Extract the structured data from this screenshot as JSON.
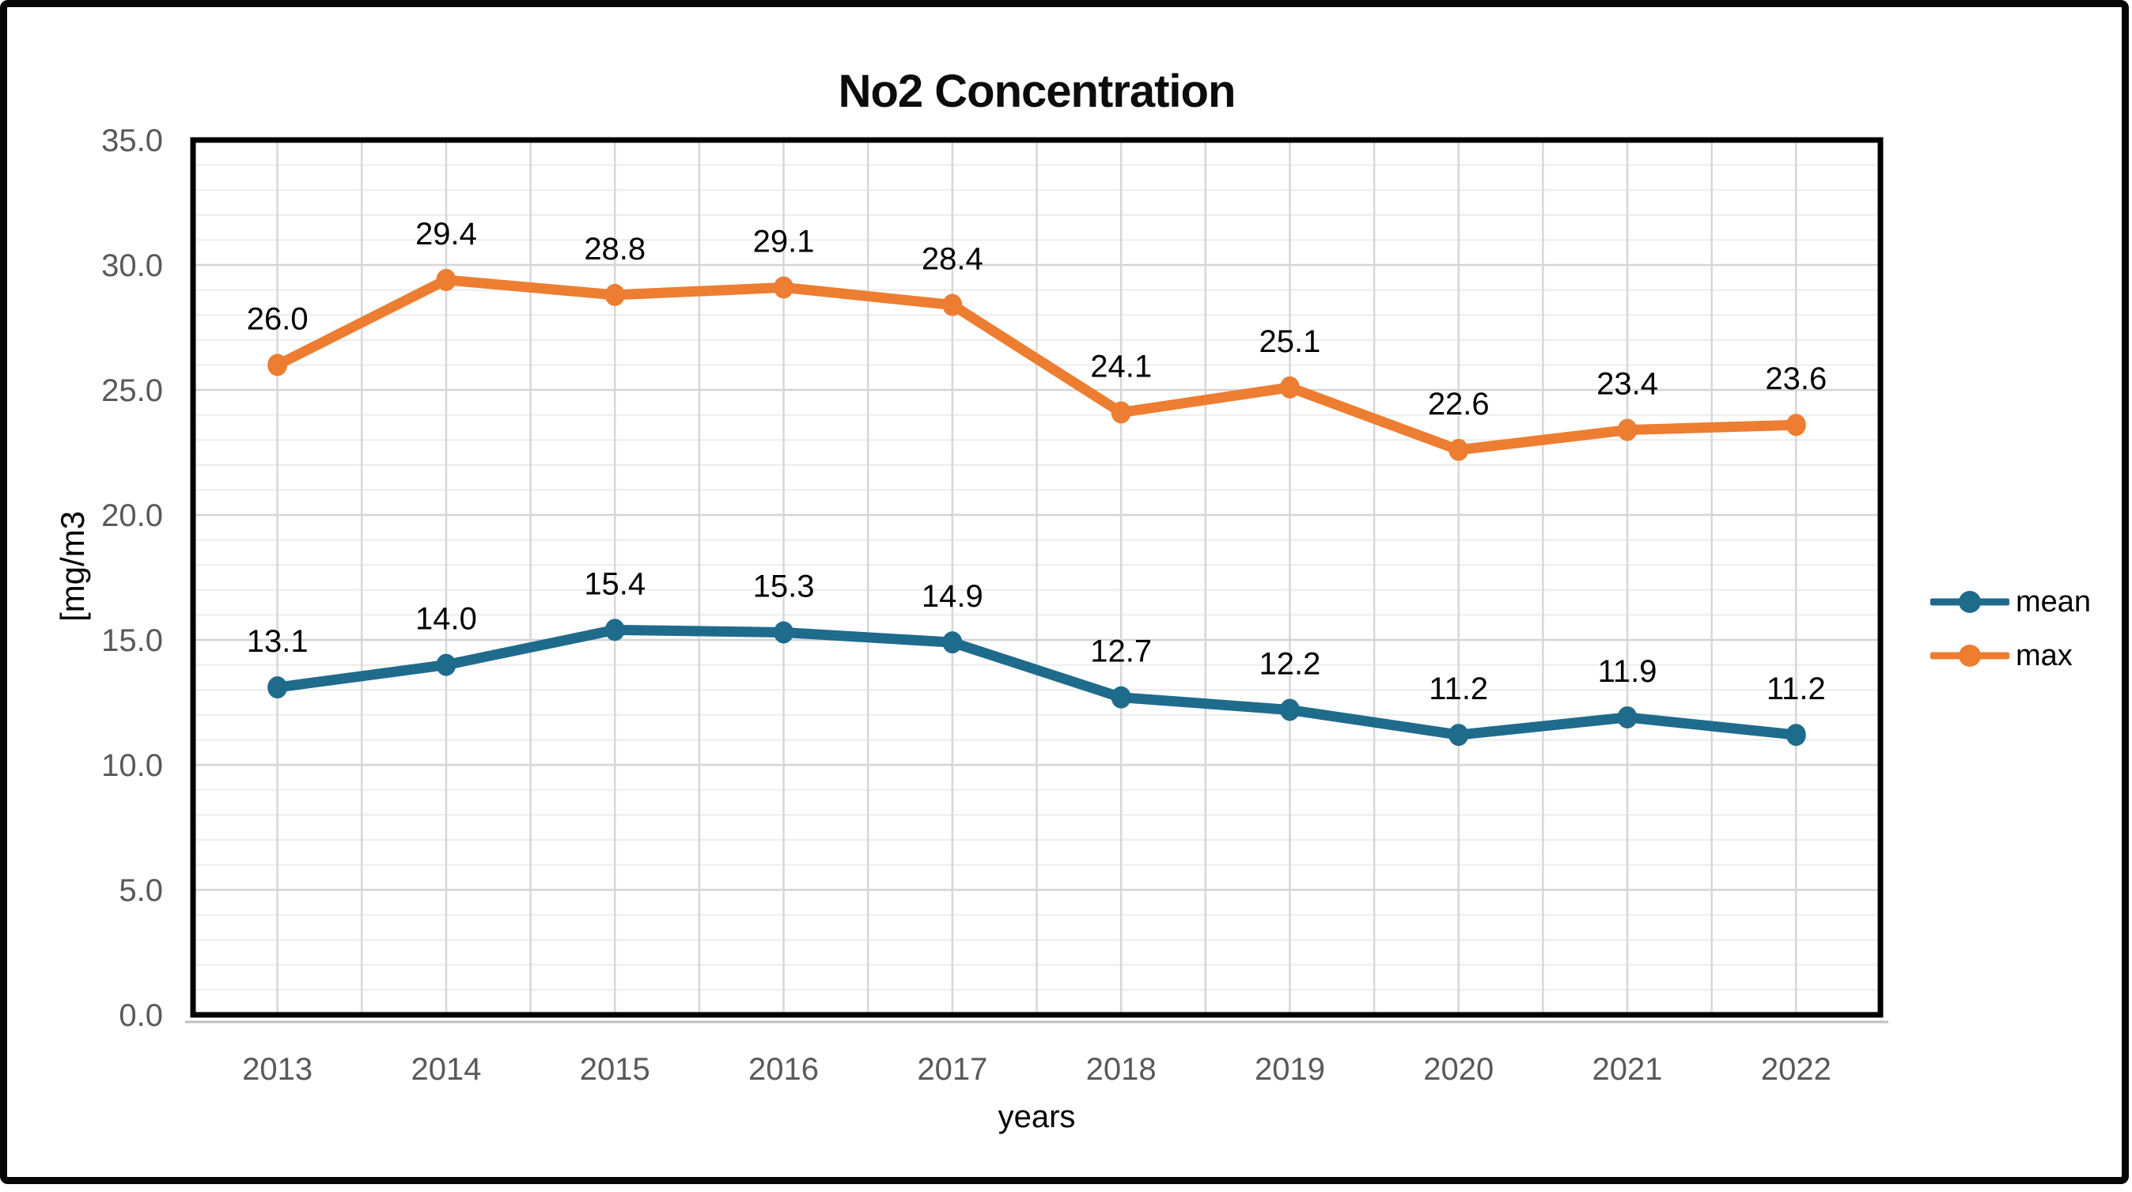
{
  "chart_data": {
    "type": "line",
    "title": "No2 Concentration",
    "xlabel": "years",
    "ylabel": "[mg/m3",
    "categories": [
      "2013",
      "2014",
      "2015",
      "2016",
      "2017",
      "2018",
      "2019",
      "2020",
      "2021",
      "2022"
    ],
    "series": [
      {
        "name": "mean",
        "color": "#1F6B8C",
        "values": [
          13.1,
          14.0,
          15.4,
          15.3,
          14.9,
          12.7,
          12.2,
          11.2,
          11.9,
          11.2
        ]
      },
      {
        "name": "max",
        "color": "#ED7D31",
        "values": [
          26.0,
          29.4,
          28.8,
          29.1,
          28.4,
          24.1,
          25.1,
          22.6,
          23.4,
          23.6
        ]
      }
    ],
    "ylim": [
      0,
      35
    ],
    "ytick_step": 5,
    "yminor_step": 1,
    "ytick_decimals": 1,
    "data_label_decimals": 1,
    "data_labels": true,
    "grid": "major+minor",
    "legend_position": "right",
    "colors": {
      "axis_tick_text": "#595959",
      "title_text": "#0c0c0c",
      "data_label_text": "#000000",
      "grid_minor": "#ececec",
      "grid_major": "#d4d4d4",
      "grid_vertical": "#d7d7d7",
      "plot_border": "#000000",
      "axis_baseline": "#bfbfbf",
      "figure_frame": "#060606"
    }
  }
}
